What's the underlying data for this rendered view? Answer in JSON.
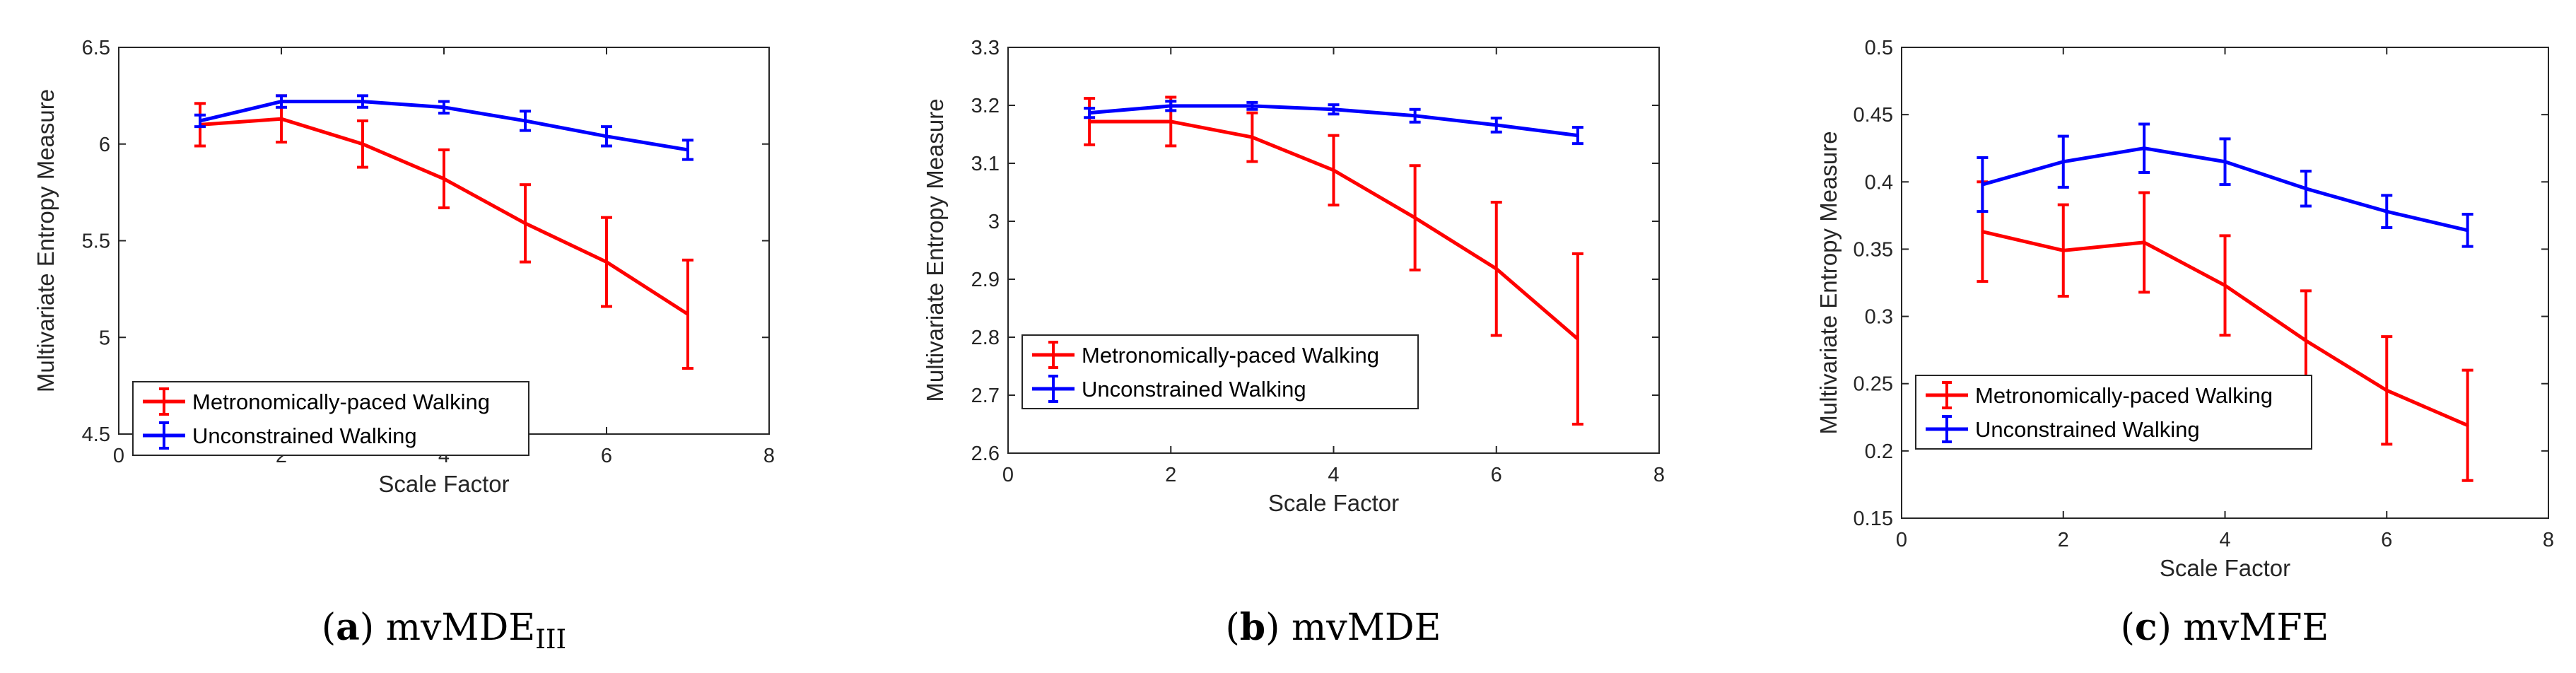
{
  "chart_data": [
    {
      "type": "line",
      "panel_letter": "a",
      "caption": "mvMDE",
      "caption_subscript": "III",
      "xlabel": "Scale Factor",
      "ylabel": "Multivariate Entropy Measure",
      "xlim": [
        0,
        8
      ],
      "ylim": [
        4.5,
        6.5
      ],
      "x_ticks": [
        "0",
        "2",
        "4",
        "6",
        "8"
      ],
      "y_ticks": [
        "4.5",
        "5",
        "5.5",
        "6",
        "6.5"
      ],
      "legend_position": "bottom-left",
      "x": [
        1,
        2,
        3,
        4,
        5,
        6,
        7
      ],
      "series": [
        {
          "name": "Metronomically-paced Walking",
          "color": "#ff0000",
          "values": [
            6.1,
            6.13,
            6.0,
            5.82,
            5.59,
            5.39,
            5.12
          ],
          "errors": [
            0.11,
            0.12,
            0.12,
            0.15,
            0.2,
            0.23,
            0.28
          ]
        },
        {
          "name": "Unconstrained Walking",
          "color": "#0000ff",
          "values": [
            6.12,
            6.22,
            6.22,
            6.19,
            6.12,
            6.04,
            5.97
          ],
          "errors": [
            0.03,
            0.03,
            0.03,
            0.03,
            0.05,
            0.05,
            0.05
          ]
        }
      ]
    },
    {
      "type": "line",
      "panel_letter": "b",
      "caption": "mvMDE",
      "caption_subscript": "",
      "xlabel": "Scale Factor",
      "ylabel": "Multivariate Entropy Measure",
      "xlim": [
        0,
        8
      ],
      "ylim": [
        2.6,
        3.3
      ],
      "x_ticks": [
        "0",
        "2",
        "4",
        "6",
        "8"
      ],
      "y_ticks": [
        "2.6",
        "2.7",
        "2.8",
        "2.9",
        "3",
        "3.1",
        "3.2",
        "3.3"
      ],
      "legend_position": "bottom-left",
      "x": [
        1,
        2,
        3,
        4,
        5,
        6,
        7
      ],
      "series": [
        {
          "name": "Metronomically-paced Walking",
          "color": "#ff0000",
          "values": [
            3.172,
            3.172,
            3.145,
            3.088,
            3.006,
            2.918,
            2.797
          ],
          "errors": [
            0.04,
            0.042,
            0.042,
            0.06,
            0.09,
            0.115,
            0.147
          ]
        },
        {
          "name": "Unconstrained Walking",
          "color": "#0000ff",
          "values": [
            3.187,
            3.199,
            3.199,
            3.193,
            3.182,
            3.166,
            3.148
          ],
          "errors": [
            0.008,
            0.008,
            0.006,
            0.008,
            0.011,
            0.012,
            0.014
          ]
        }
      ]
    },
    {
      "type": "line",
      "panel_letter": "c",
      "caption": "mvMFE",
      "caption_subscript": "",
      "xlabel": "Scale Factor",
      "ylabel": "Multivariate Entropy Measure",
      "xlim": [
        0,
        8
      ],
      "ylim": [
        0.15,
        0.5
      ],
      "x_ticks": [
        "0",
        "2",
        "4",
        "6",
        "8"
      ],
      "y_ticks": [
        "0.15",
        "0.2",
        "0.25",
        "0.3",
        "0.35",
        "0.4",
        "0.45",
        "0.5"
      ],
      "legend_position": "bottom-left",
      "x": [
        1,
        2,
        3,
        4,
        5,
        6,
        7
      ],
      "series": [
        {
          "name": "Metronomically-paced Walking",
          "color": "#ff0000",
          "values": [
            0.363,
            0.349,
            0.355,
            0.323,
            0.282,
            0.245,
            0.219
          ],
          "errors": [
            0.037,
            0.034,
            0.037,
            0.037,
            0.037,
            0.04,
            0.041
          ]
        },
        {
          "name": "Unconstrained Walking",
          "color": "#0000ff",
          "values": [
            0.398,
            0.415,
            0.425,
            0.415,
            0.395,
            0.378,
            0.364
          ],
          "errors": [
            0.02,
            0.019,
            0.018,
            0.017,
            0.013,
            0.012,
            0.012
          ]
        }
      ]
    }
  ]
}
